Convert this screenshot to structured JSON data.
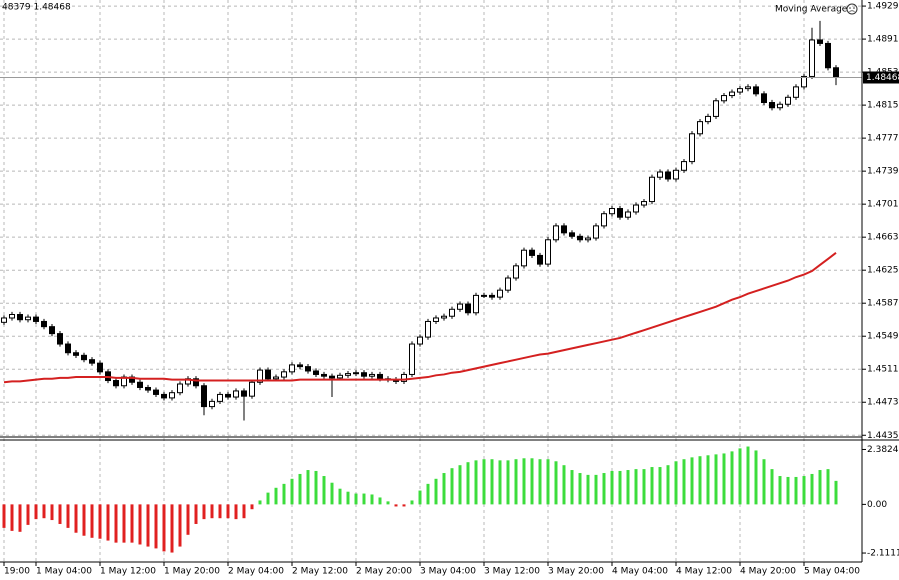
{
  "chart_data": [
    {
      "type": "candlestick",
      "header_text": "48379 1.48468",
      "indicator_label": "Moving Average",
      "categories": [
        "19:00",
        null,
        null,
        null,
        "1 May 04:00",
        null,
        null,
        null,
        null,
        null,
        null,
        null,
        "1 May 12:00",
        null,
        null,
        null,
        null,
        null,
        null,
        null,
        "1 May 20:00",
        null,
        null,
        null,
        null,
        null,
        null,
        null,
        "2 May 04:00",
        null,
        null,
        null,
        null,
        null,
        null,
        null,
        "2 May 12:00",
        null,
        null,
        null,
        null,
        null,
        null,
        null,
        "2 May 20:00",
        null,
        null,
        null,
        null,
        null,
        null,
        null,
        "3 May 04:00",
        null,
        null,
        null,
        null,
        null,
        null,
        null,
        "3 May 12:00",
        null,
        null,
        null,
        null,
        null,
        null,
        null,
        "3 May 20:00",
        null,
        null,
        null,
        null,
        null,
        null,
        null,
        "4 May 04:00",
        null,
        null,
        null,
        null,
        null,
        null,
        null,
        "4 May 12:00",
        null,
        null,
        null,
        null,
        null,
        null,
        null,
        "4 May 20:00",
        null,
        null,
        null,
        null,
        null,
        null,
        null,
        "5 May 04:00",
        null,
        null,
        null,
        null
      ],
      "open": [
        1.4565,
        1.457,
        1.4574,
        1.4568,
        1.4571,
        1.4566,
        1.456,
        1.4552,
        1.454,
        1.453,
        1.4527,
        1.4522,
        1.4518,
        1.4508,
        1.4498,
        1.4492,
        1.4502,
        1.4496,
        1.449,
        1.4487,
        1.4482,
        1.4478,
        1.4484,
        1.4494,
        1.45,
        1.4492,
        1.4468,
        1.4474,
        1.4482,
        1.4479,
        1.4486,
        1.448,
        1.4496,
        1.451,
        1.45,
        1.4502,
        1.4508,
        1.4516,
        1.4514,
        1.4509,
        1.4505,
        1.4503,
        1.4501,
        1.4504,
        1.4506,
        1.4507,
        1.4503,
        1.4505,
        1.45,
        1.4499,
        1.4497,
        1.4505,
        1.454,
        1.4548,
        1.4566,
        1.457,
        1.4572,
        1.458,
        1.4586,
        1.4576,
        1.4596,
        1.4596,
        1.4594,
        1.4602,
        1.4616,
        1.463,
        1.4648,
        1.4642,
        1.4632,
        1.466,
        1.4676,
        1.4668,
        1.4664,
        1.466,
        1.4662,
        1.4676,
        1.469,
        1.4696,
        1.4686,
        1.4692,
        1.47,
        1.4704,
        1.4732,
        1.4738,
        1.473,
        1.474,
        1.475,
        1.4782,
        1.4796,
        1.4802,
        1.482,
        1.4826,
        1.483,
        1.4834,
        1.4836,
        1.4828,
        1.4818,
        1.4812,
        1.4816,
        1.4824,
        1.4836,
        1.4848,
        1.489,
        1.4886,
        1.4858
      ],
      "high": [
        1.4573,
        1.4577,
        1.4577,
        1.4574,
        1.4574,
        1.4569,
        1.4563,
        1.4555,
        1.4543,
        1.4533,
        1.453,
        1.4525,
        1.4521,
        1.4511,
        1.4501,
        1.4505,
        1.4505,
        1.4499,
        1.4493,
        1.449,
        1.4485,
        1.4487,
        1.4497,
        1.4503,
        1.4503,
        1.4495,
        1.4477,
        1.4485,
        1.4485,
        1.4489,
        1.4489,
        1.4499,
        1.4513,
        1.4513,
        1.4505,
        1.4511,
        1.4519,
        1.4519,
        1.4517,
        1.4512,
        1.4508,
        1.4506,
        1.4507,
        1.4509,
        1.451,
        1.451,
        1.4508,
        1.4508,
        1.4503,
        1.4502,
        1.4508,
        1.4543,
        1.4551,
        1.4569,
        1.4573,
        1.4575,
        1.4583,
        1.4589,
        1.4589,
        1.4599,
        1.4599,
        1.4599,
        1.4605,
        1.4619,
        1.4633,
        1.4651,
        1.4651,
        1.4645,
        1.4663,
        1.4679,
        1.4679,
        1.4671,
        1.4667,
        1.4665,
        1.4679,
        1.4693,
        1.4699,
        1.4699,
        1.4695,
        1.4703,
        1.4707,
        1.4735,
        1.4741,
        1.4741,
        1.4743,
        1.4753,
        1.4785,
        1.4799,
        1.4805,
        1.4823,
        1.4829,
        1.4833,
        1.4837,
        1.4839,
        1.4839,
        1.4831,
        1.4821,
        1.4819,
        1.4827,
        1.4839,
        1.4851,
        1.4904,
        1.4912,
        1.4889,
        1.4861
      ],
      "low": [
        1.4562,
        1.4567,
        1.4565,
        1.4565,
        1.4563,
        1.4557,
        1.4549,
        1.4537,
        1.4527,
        1.4524,
        1.4519,
        1.4515,
        1.4505,
        1.4495,
        1.4489,
        1.4489,
        1.4493,
        1.4487,
        1.4484,
        1.4479,
        1.4475,
        1.4475,
        1.4481,
        1.4491,
        1.4489,
        1.4458,
        1.4465,
        1.4471,
        1.4476,
        1.4476,
        1.4452,
        1.4477,
        1.4493,
        1.4497,
        1.4497,
        1.4499,
        1.4505,
        1.4511,
        1.4506,
        1.4502,
        1.45,
        1.4479,
        1.4498,
        1.4501,
        1.4503,
        1.45,
        1.45,
        1.4497,
        1.4496,
        1.4494,
        1.4494,
        1.4502,
        1.4537,
        1.4545,
        1.4563,
        1.4567,
        1.4569,
        1.4577,
        1.4573,
        1.4573,
        1.4593,
        1.4591,
        1.4591,
        1.4599,
        1.4613,
        1.4627,
        1.4639,
        1.4629,
        1.4629,
        1.4657,
        1.4665,
        1.4661,
        1.4657,
        1.4657,
        1.4659,
        1.4673,
        1.4687,
        1.4683,
        1.4683,
        1.4689,
        1.4697,
        1.4701,
        1.4729,
        1.4727,
        1.4727,
        1.4737,
        1.4747,
        1.4779,
        1.4793,
        1.4799,
        1.4817,
        1.4823,
        1.4827,
        1.4831,
        1.4825,
        1.4815,
        1.4809,
        1.4809,
        1.4813,
        1.4821,
        1.4833,
        1.4845,
        1.4883,
        1.4855,
        1.4838
      ],
      "close": [
        1.457,
        1.4574,
        1.4568,
        1.4571,
        1.4566,
        1.456,
        1.4552,
        1.454,
        1.453,
        1.4527,
        1.4522,
        1.4518,
        1.4508,
        1.4498,
        1.4492,
        1.4502,
        1.4496,
        1.449,
        1.4487,
        1.4482,
        1.4478,
        1.4484,
        1.4494,
        1.45,
        1.4492,
        1.4468,
        1.4474,
        1.4482,
        1.4479,
        1.4486,
        1.448,
        1.4496,
        1.451,
        1.45,
        1.4502,
        1.4508,
        1.4516,
        1.4514,
        1.4509,
        1.4505,
        1.4503,
        1.4501,
        1.4504,
        1.4506,
        1.4507,
        1.4503,
        1.4505,
        1.45,
        1.4499,
        1.4497,
        1.4505,
        1.454,
        1.4548,
        1.4566,
        1.457,
        1.4572,
        1.458,
        1.4586,
        1.4576,
        1.4596,
        1.4596,
        1.4594,
        1.4602,
        1.4616,
        1.463,
        1.4648,
        1.4642,
        1.4632,
        1.466,
        1.4676,
        1.4668,
        1.4664,
        1.466,
        1.4662,
        1.4676,
        1.469,
        1.4696,
        1.4686,
        1.4692,
        1.47,
        1.4704,
        1.4732,
        1.4738,
        1.473,
        1.474,
        1.475,
        1.4782,
        1.4796,
        1.4802,
        1.482,
        1.4826,
        1.483,
        1.4834,
        1.4836,
        1.4828,
        1.4818,
        1.4812,
        1.4816,
        1.4824,
        1.4836,
        1.4848,
        1.489,
        1.4886,
        1.4858,
        1.4847
      ],
      "ma": {
        "color": "#d42020",
        "values": [
          1.4496,
          1.4497,
          1.4497,
          1.4498,
          1.4499,
          1.45,
          1.45,
          1.4501,
          1.4501,
          1.4502,
          1.4502,
          1.4502,
          1.4502,
          1.4502,
          1.4501,
          1.4501,
          1.4501,
          1.45,
          1.45,
          1.45,
          1.45,
          1.4499,
          1.4499,
          1.4499,
          1.4498,
          1.4498,
          1.4498,
          1.4498,
          1.4498,
          1.4498,
          1.4498,
          1.4498,
          1.4498,
          1.4498,
          1.4498,
          1.4498,
          1.4498,
          1.4499,
          1.4499,
          1.4499,
          1.4499,
          1.4499,
          1.4499,
          1.4499,
          1.4499,
          1.4499,
          1.4499,
          1.4499,
          1.4499,
          1.4499,
          1.4499,
          1.45,
          1.4501,
          1.4502,
          1.4504,
          1.4505,
          1.4507,
          1.4508,
          1.451,
          1.4512,
          1.4514,
          1.4516,
          1.4518,
          1.452,
          1.4522,
          1.4524,
          1.4526,
          1.4528,
          1.4529,
          1.4531,
          1.4533,
          1.4535,
          1.4537,
          1.4539,
          1.4541,
          1.4543,
          1.4545,
          1.4547,
          1.455,
          1.4553,
          1.4556,
          1.4559,
          1.4562,
          1.4565,
          1.4568,
          1.4571,
          1.4574,
          1.4577,
          1.458,
          1.4583,
          1.4587,
          1.4591,
          1.4594,
          1.4598,
          1.4601,
          1.4604,
          1.4607,
          1.461,
          1.4613,
          1.4617,
          1.462,
          1.4624,
          1.4631,
          1.4638,
          1.4645
        ]
      },
      "last_price": 1.48468,
      "ylim": [
        1.4433,
        1.4936
      ],
      "yticks": [
        {
          "value": 1.4929,
          "label": "1.49290"
        },
        {
          "value": 1.4891,
          "label": "1.48910"
        },
        {
          "value": 1.4853,
          "label": "1.48530"
        },
        {
          "value": 1.4815,
          "label": "1.48150"
        },
        {
          "value": 1.4777,
          "label": "1.47770"
        },
        {
          "value": 1.4739,
          "label": "1.47390"
        },
        {
          "value": 1.4701,
          "label": "1.47010"
        },
        {
          "value": 1.4663,
          "label": "1.46630"
        },
        {
          "value": 1.4625,
          "label": "1.46250"
        },
        {
          "value": 1.4587,
          "label": "1.45870"
        },
        {
          "value": 1.4549,
          "label": "1.45490"
        },
        {
          "value": 1.4511,
          "label": "1.45110"
        },
        {
          "value": 1.4473,
          "label": "1.44730"
        },
        {
          "value": 1.4435,
          "label": "1.44350"
        }
      ],
      "grid": true
    },
    {
      "type": "histogram",
      "positive_color": "#3cdc3c",
      "negative_color": "#e02020",
      "values": [
        -1.02,
        -1.15,
        -1.19,
        -0.89,
        -0.64,
        -0.6,
        -0.68,
        -0.85,
        -1.02,
        -1.23,
        -1.36,
        -1.45,
        -1.49,
        -1.57,
        -1.66,
        -1.66,
        -1.66,
        -1.74,
        -1.83,
        -1.91,
        -2.04,
        -2.09,
        -1.83,
        -1.32,
        -0.85,
        -0.64,
        -0.6,
        -0.6,
        -0.6,
        -0.64,
        -0.6,
        -0.21,
        0.17,
        0.51,
        0.72,
        0.89,
        1.11,
        1.32,
        1.49,
        1.45,
        1.23,
        0.94,
        0.68,
        0.55,
        0.47,
        0.47,
        0.43,
        0.3,
        0.13,
        -0.09,
        -0.09,
        0.17,
        0.6,
        0.89,
        1.11,
        1.36,
        1.57,
        1.7,
        1.83,
        1.91,
        1.96,
        1.96,
        1.91,
        1.91,
        1.96,
        2.0,
        2.0,
        1.96,
        1.96,
        1.87,
        1.7,
        1.49,
        1.36,
        1.28,
        1.28,
        1.36,
        1.45,
        1.45,
        1.49,
        1.53,
        1.53,
        1.62,
        1.62,
        1.7,
        1.87,
        1.96,
        2.04,
        2.09,
        2.13,
        2.17,
        2.21,
        2.3,
        2.43,
        2.51,
        2.34,
        1.96,
        1.53,
        1.23,
        1.19,
        1.19,
        1.23,
        1.32,
        1.49,
        1.53,
        1.02
      ],
      "ylim": [
        -2.5,
        2.75
      ],
      "yticks": [
        2.3824,
        {
          "value": 0,
          "label": "0.00"
        },
        -2.1111
      ]
    }
  ]
}
